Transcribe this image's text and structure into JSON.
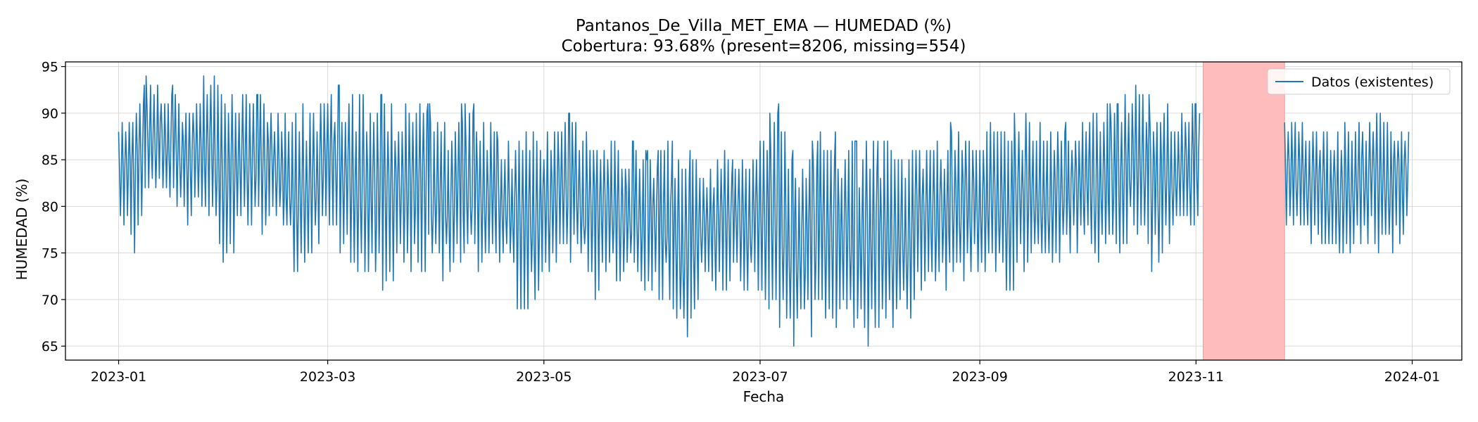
{
  "chart_data": {
    "type": "line",
    "title": "Pantanos_De_Villa_MET_EMA — HUMEDAD (%)",
    "subtitle": "Cobertura: 93.68%  (present=8206, missing=554)",
    "xlabel": "Fecha",
    "ylabel": "HUMEDAD (%)",
    "x_ticks": [
      "2023-01",
      "2023-03",
      "2023-05",
      "2023-07",
      "2023-09",
      "2023-11",
      "2024-01"
    ],
    "y_ticks": [
      65,
      70,
      75,
      80,
      85,
      90,
      95
    ],
    "xlim": [
      "2022-12-17",
      "2024-01-15"
    ],
    "ylim": [
      63.5,
      95.5
    ],
    "grid": true,
    "legend": {
      "placement": "top-right",
      "entries": [
        "Datos (existentes)"
      ]
    },
    "missing_span": {
      "start": "2023-11-03",
      "end": "2023-11-26",
      "color": "#ffbcbc"
    },
    "series": [
      {
        "name": "Datos (existentes)",
        "color": "#1f77b4",
        "segments": [
          {
            "x": [
              "2023-01-01",
              "2023-01-05",
              "2023-01-10",
              "2023-01-15",
              "2023-01-20",
              "2023-01-25",
              "2023-02-01",
              "2023-02-05",
              "2023-02-10",
              "2023-02-15",
              "2023-02-20",
              "2023-02-25",
              "2023-03-01",
              "2023-03-05",
              "2023-03-10",
              "2023-03-15",
              "2023-03-20",
              "2023-03-25",
              "2023-04-01",
              "2023-04-05",
              "2023-04-10",
              "2023-04-15",
              "2023-04-20",
              "2023-04-25",
              "2023-05-01",
              "2023-05-05",
              "2023-05-10",
              "2023-05-15",
              "2023-05-20",
              "2023-05-25",
              "2023-06-01",
              "2023-06-05",
              "2023-06-10",
              "2023-06-15",
              "2023-06-20",
              "2023-06-25",
              "2023-07-01",
              "2023-07-05",
              "2023-07-10",
              "2023-07-15",
              "2023-07-20",
              "2023-07-25",
              "2023-08-01",
              "2023-08-05",
              "2023-08-10",
              "2023-08-15",
              "2023-08-20",
              "2023-08-25",
              "2023-09-01",
              "2023-09-05",
              "2023-09-10",
              "2023-09-15",
              "2023-09-20",
              "2023-09-25",
              "2023-10-01",
              "2023-10-05",
              "2023-10-10",
              "2023-10-15",
              "2023-10-20",
              "2023-10-25",
              "2023-11-02"
            ],
            "hi": [
              89,
              92,
              94,
              93,
              92,
              94,
              94,
              93,
              92,
              91,
              91,
              90,
              92,
              93,
              92,
              92,
              91,
              91,
              91,
              90,
              91,
              89,
              88,
              88,
              89,
              90,
              90,
              89,
              87,
              87,
              86,
              87,
              86,
              84,
              86,
              85,
              87,
              92,
              86,
              87,
              88,
              87,
              87,
              87,
              87,
              88,
              87,
              89,
              89,
              89,
              90,
              90,
              89,
              89,
              90,
              91,
              91,
              93,
              92,
              91,
              91
            ],
            "lo": [
              79,
              74,
              82,
              80,
              78,
              79,
              72,
              78,
              77,
              78,
              72,
              75,
              78,
              75,
              72,
              71,
              72,
              73,
              72,
              72,
              74,
              72,
              74,
              66,
              72,
              73,
              74,
              70,
              72,
              72,
              70,
              70,
              65,
              72,
              70,
              72,
              69,
              66,
              65,
              65,
              68,
              66,
              65,
              66,
              67,
              69,
              70,
              72,
              73,
              73,
              70,
              74,
              73,
              74,
              75,
              74,
              75,
              77,
              72,
              75,
              78
            ]
          },
          {
            "x": [
              "2023-11-26",
              "2023-11-30",
              "2023-12-05",
              "2023-12-10",
              "2023-12-15",
              "2023-12-20",
              "2023-12-25",
              "2023-12-31"
            ],
            "hi": [
              89,
              89,
              89,
              88,
              90,
              90,
              91,
              89
            ],
            "lo": [
              78,
              78,
              75,
              74,
              75,
              76,
              74,
              78
            ]
          }
        ]
      }
    ]
  }
}
